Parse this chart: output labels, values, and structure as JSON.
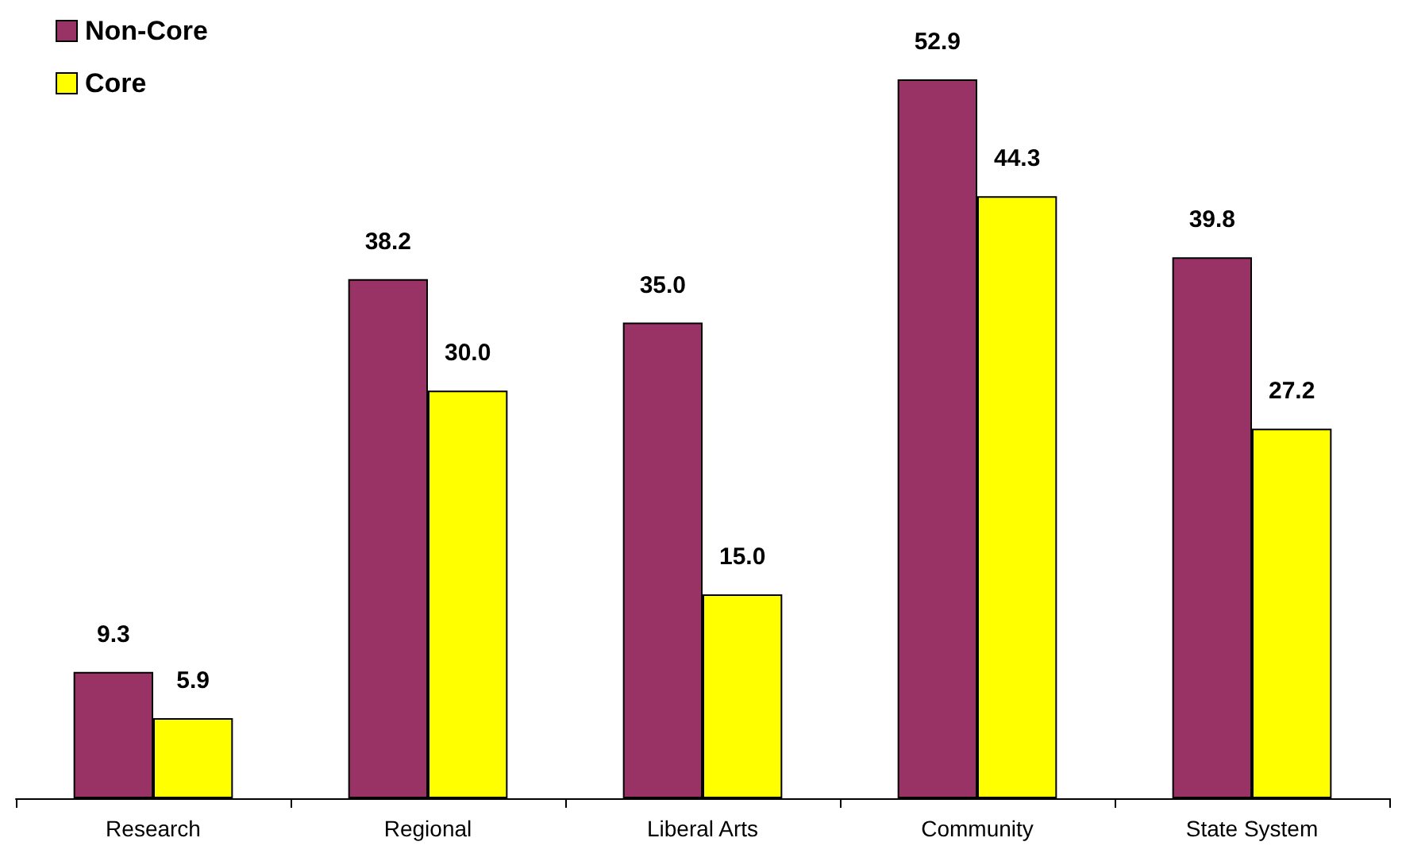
{
  "chart_data": {
    "type": "bar",
    "categories": [
      "Research",
      "Regional",
      "Liberal Arts",
      "Community",
      "State System"
    ],
    "series": [
      {
        "name": "Non-Core",
        "color": "#993366",
        "values": [
          9.3,
          38.2,
          35.0,
          52.9,
          39.8
        ],
        "value_labels": [
          "9.3",
          "38.2",
          "35.0",
          "52.9",
          "39.8"
        ]
      },
      {
        "name": "Core",
        "color": "#ffff00",
        "values": [
          5.9,
          30.0,
          15.0,
          44.3,
          27.2
        ],
        "value_labels": [
          "5.9",
          "30.0",
          "15.0",
          "44.3",
          "27.2"
        ]
      }
    ],
    "legend": "top left"
  }
}
